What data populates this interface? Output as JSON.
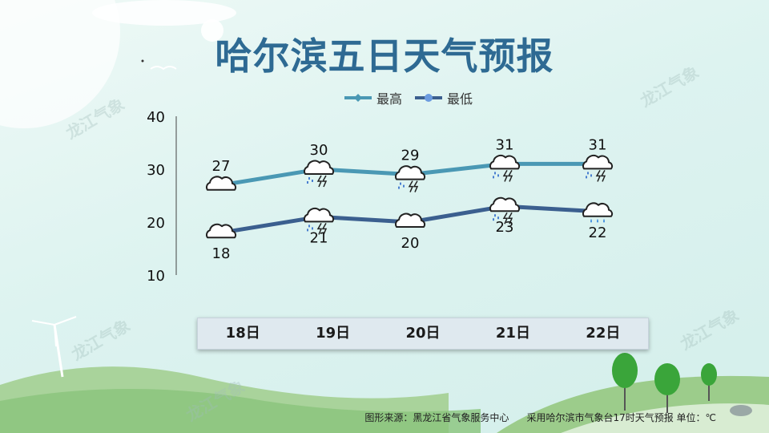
{
  "title": "哈尔滨五日天气预报",
  "watermark": "龙江气象",
  "footer": {
    "source": "图形来源：黑龙江省气象服务中心",
    "note": "采用哈尔滨市气象台17时天气预报 单位：℃"
  },
  "colors": {
    "high": "#4a98b4",
    "low": "#3b5f8f",
    "title": "#2e6a93"
  },
  "chart_data": {
    "type": "line",
    "categories": [
      "18日",
      "19日",
      "20日",
      "21日",
      "22日"
    ],
    "ylim": [
      10,
      40
    ],
    "yticks": [
      10,
      20,
      30,
      40
    ],
    "series": [
      {
        "name": "最高",
        "values": [
          27,
          30,
          29,
          31,
          31
        ],
        "icons": [
          "cloudy-icon",
          "thunderstorm-icon",
          "thunderstorm-icon",
          "thunderstorm-icon",
          "thunderstorm-icon"
        ]
      },
      {
        "name": "最低",
        "values": [
          18,
          21,
          20,
          23,
          22
        ],
        "icons": [
          "cloudy-icon",
          "thunderstorm-icon",
          "cloudy-icon",
          "thunderstorm-icon",
          "rain-icon"
        ]
      }
    ],
    "legend": "top-center",
    "grid": false
  }
}
